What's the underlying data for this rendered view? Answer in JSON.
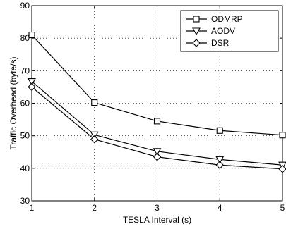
{
  "chart_data": {
    "type": "line",
    "x": [
      1,
      2,
      3,
      4,
      5
    ],
    "xlabel": "TESLA Interval (s)",
    "ylabel": "Traffic Overhead (byte/s)",
    "xlim": [
      1,
      5
    ],
    "ylim": [
      30,
      90
    ],
    "xticks": [
      "1",
      "2",
      "3",
      "4",
      "5"
    ],
    "yticks": [
      "30",
      "40",
      "50",
      "60",
      "70",
      "80",
      "90"
    ],
    "grid": true,
    "legend_position": "top-right",
    "series": [
      {
        "name": "ODMRP",
        "marker": "square",
        "values": [
          81.0,
          60.2,
          54.5,
          51.6,
          50.2
        ]
      },
      {
        "name": "AODV",
        "marker": "triangle-down",
        "values": [
          66.7,
          50.3,
          45.2,
          42.7,
          41.0
        ]
      },
      {
        "name": "DSR",
        "marker": "diamond",
        "values": [
          65.0,
          48.9,
          43.5,
          41.0,
          39.8
        ]
      }
    ]
  }
}
